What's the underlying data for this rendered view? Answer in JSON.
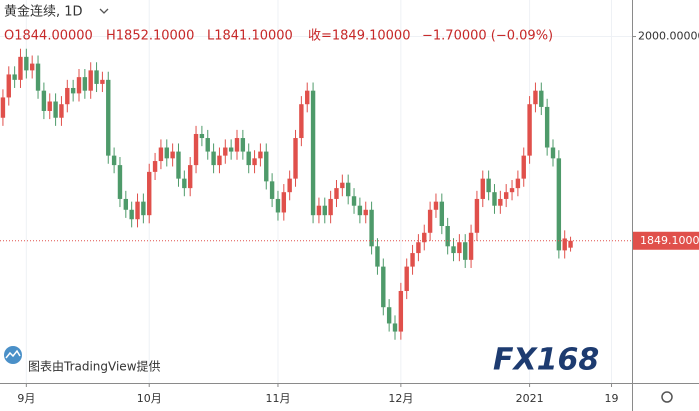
{
  "chart_data": {
    "type": "candlestick",
    "title": "黄金连续, 1D",
    "header_values": [
      "O1844.00000",
      "H1852.10000",
      "L1841.10000",
      "收=1849.10000",
      "−1.70000 (−0.09%)"
    ],
    "open": [
      1940,
      1955,
      1972,
      1968,
      1985,
      1975,
      1980,
      1960,
      1945,
      1952,
      1940,
      1950,
      1962,
      1958,
      1970,
      1960,
      1975,
      1965,
      1968,
      1912,
      1905,
      1880,
      1872,
      1865,
      1878,
      1868,
      1900,
      1908,
      1918,
      1910,
      1915,
      1895,
      1888,
      1905,
      1928,
      1925,
      1915,
      1905,
      1912,
      1918,
      1915,
      1925,
      1915,
      1905,
      1910,
      1915,
      1893,
      1880,
      1870,
      1885,
      1895,
      1925,
      1950,
      1960,
      1868,
      1875,
      1868,
      1880,
      1888,
      1892,
      1882,
      1875,
      1868,
      1872,
      1845,
      1830,
      1800,
      1788,
      1782,
      1812,
      1830,
      1840,
      1848,
      1855,
      1872,
      1878,
      1860,
      1845,
      1840,
      1848,
      1835,
      1855,
      1880,
      1895,
      1885,
      1875,
      1880,
      1885,
      1888,
      1895,
      1912,
      1950,
      1960,
      1948,
      1918,
      1910,
      1842,
      1844
    ],
    "high": [
      1961,
      1978,
      1978,
      1991,
      1991,
      1986,
      1986,
      1966,
      1958,
      1958,
      1956,
      1968,
      1968,
      1976,
      1976,
      1981,
      1981,
      1974,
      1974,
      1918,
      1911,
      1886,
      1878,
      1884,
      1884,
      1906,
      1914,
      1924,
      1924,
      1921,
      1921,
      1901,
      1911,
      1934,
      1934,
      1931,
      1921,
      1918,
      1924,
      1924,
      1931,
      1931,
      1921,
      1916,
      1921,
      1921,
      1899,
      1886,
      1891,
      1901,
      1931,
      1956,
      1966,
      1966,
      1881,
      1881,
      1886,
      1894,
      1898,
      1898,
      1888,
      1881,
      1878,
      1878,
      1851,
      1836,
      1806,
      1794,
      1818,
      1836,
      1846,
      1854,
      1861,
      1878,
      1884,
      1884,
      1866,
      1851,
      1854,
      1854,
      1861,
      1886,
      1901,
      1901,
      1891,
      1886,
      1891,
      1894,
      1901,
      1918,
      1956,
      1966,
      1966,
      1954,
      1924,
      1916,
      1856.8,
      1852.1
    ],
    "low": [
      1934,
      1949,
      1962,
      1962,
      1969,
      1969,
      1954,
      1939,
      1939,
      1934,
      1934,
      1944,
      1952,
      1952,
      1954,
      1954,
      1959,
      1959,
      1906,
      1899,
      1874,
      1866,
      1859,
      1859,
      1862,
      1862,
      1894,
      1902,
      1904,
      1904,
      1889,
      1882,
      1882,
      1899,
      1919,
      1909,
      1899,
      1899,
      1906,
      1909,
      1909,
      1909,
      1899,
      1899,
      1904,
      1887,
      1874,
      1864,
      1864,
      1879,
      1889,
      1919,
      1944,
      1862,
      1862,
      1862,
      1862,
      1874,
      1882,
      1876,
      1869,
      1862,
      1862,
      1839,
      1824,
      1794,
      1782,
      1776,
      1776,
      1806,
      1824,
      1834,
      1842,
      1849,
      1866,
      1854,
      1839,
      1834,
      1834,
      1829,
      1829,
      1849,
      1874,
      1879,
      1869,
      1869,
      1874,
      1879,
      1882,
      1889,
      1906,
      1944,
      1942,
      1912,
      1904,
      1836,
      1836,
      1841.1
    ],
    "close": [
      1955,
      1972,
      1968,
      1985,
      1975,
      1980,
      1960,
      1945,
      1952,
      1940,
      1950,
      1962,
      1958,
      1970,
      1960,
      1975,
      1965,
      1968,
      1912,
      1905,
      1880,
      1872,
      1865,
      1878,
      1868,
      1900,
      1908,
      1918,
      1910,
      1915,
      1895,
      1888,
      1905,
      1928,
      1925,
      1915,
      1905,
      1912,
      1918,
      1915,
      1925,
      1915,
      1905,
      1910,
      1915,
      1893,
      1880,
      1870,
      1885,
      1895,
      1925,
      1950,
      1960,
      1868,
      1875,
      1868,
      1880,
      1888,
      1892,
      1882,
      1875,
      1868,
      1872,
      1845,
      1830,
      1800,
      1788,
      1782,
      1812,
      1830,
      1840,
      1848,
      1855,
      1872,
      1878,
      1860,
      1845,
      1840,
      1848,
      1835,
      1855,
      1880,
      1895,
      1885,
      1875,
      1880,
      1885,
      1888,
      1895,
      1912,
      1950,
      1960,
      1948,
      1918,
      1910,
      1842,
      1850.8,
      1849.1
    ],
    "up_color": "#e0504b",
    "down_color": "#4e9a6a",
    "xlim": [
      -0.5,
      107.5
    ],
    "xticks": [
      {
        "value": 4,
        "label": "9月"
      },
      {
        "value": 25,
        "label": "10月"
      },
      {
        "value": 47,
        "label": "11月"
      },
      {
        "value": 68,
        "label": "12月"
      },
      {
        "value": 90,
        "label": "2021"
      },
      {
        "value": 104,
        "label": "19"
      }
    ],
    "ylim": [
      1744,
      2027
    ],
    "yticks": [
      {
        "value": 2000,
        "label": "2000.00000"
      }
    ],
    "last_price": {
      "value": 1849.1,
      "label": "1849.10000"
    },
    "grid": true
  },
  "attribution": "图表由TradingView提供",
  "watermark": "FX168"
}
